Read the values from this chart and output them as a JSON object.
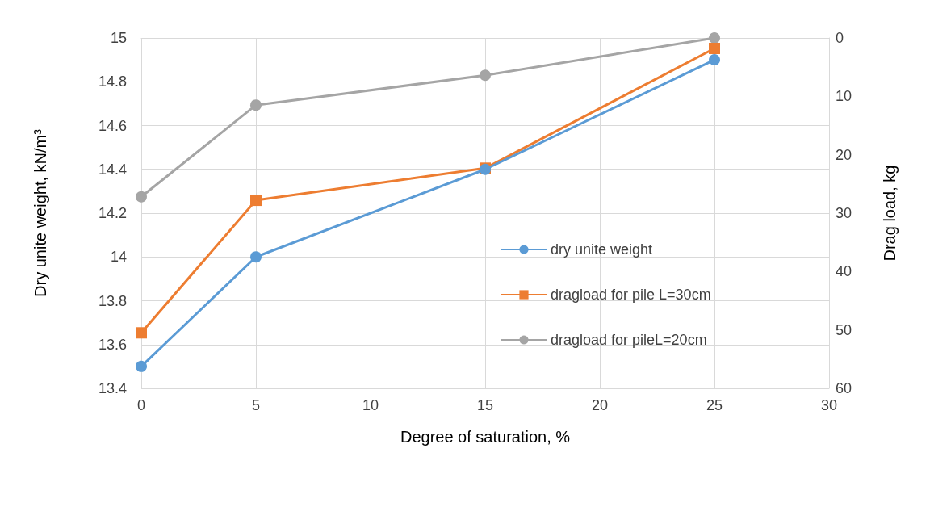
{
  "chart_data": {
    "type": "line",
    "xlabel": "Degree of saturation, %",
    "ylabel": "Dry unite weight, kN/m³",
    "y2label": "Drag load, kg",
    "x": [
      0,
      5,
      15,
      25
    ],
    "series": [
      {
        "name": "dry unite weight",
        "color": "#5b9bd5",
        "values": [
          13.5,
          14.0,
          14.4,
          14.9
        ],
        "marker": "circle"
      },
      {
        "name": "dragload for pile L=30cm",
        "color": "#ed7d31",
        "values": [
          50.5,
          27.8,
          22.3,
          1.8
        ],
        "axis": "y2",
        "marker": "square"
      },
      {
        "name": "dragload for pileL=20cm",
        "color": "#a5a5a5",
        "values": [
          27.2,
          11.5,
          6.4,
          0
        ],
        "axis": "y2",
        "marker": "circle"
      }
    ],
    "xlim": [
      0,
      30
    ],
    "xticks": [
      0,
      5,
      10,
      15,
      20,
      25,
      30
    ],
    "ylim": [
      13.4,
      15
    ],
    "yticks": [
      13.4,
      13.6,
      13.8,
      14,
      14.2,
      14.4,
      14.6,
      14.8,
      15
    ],
    "y2lim": [
      60,
      0
    ],
    "y2ticks": [
      0,
      10,
      20,
      30,
      40,
      50,
      60
    ],
    "grid": true,
    "legend": "right",
    "line_style": "solid"
  }
}
